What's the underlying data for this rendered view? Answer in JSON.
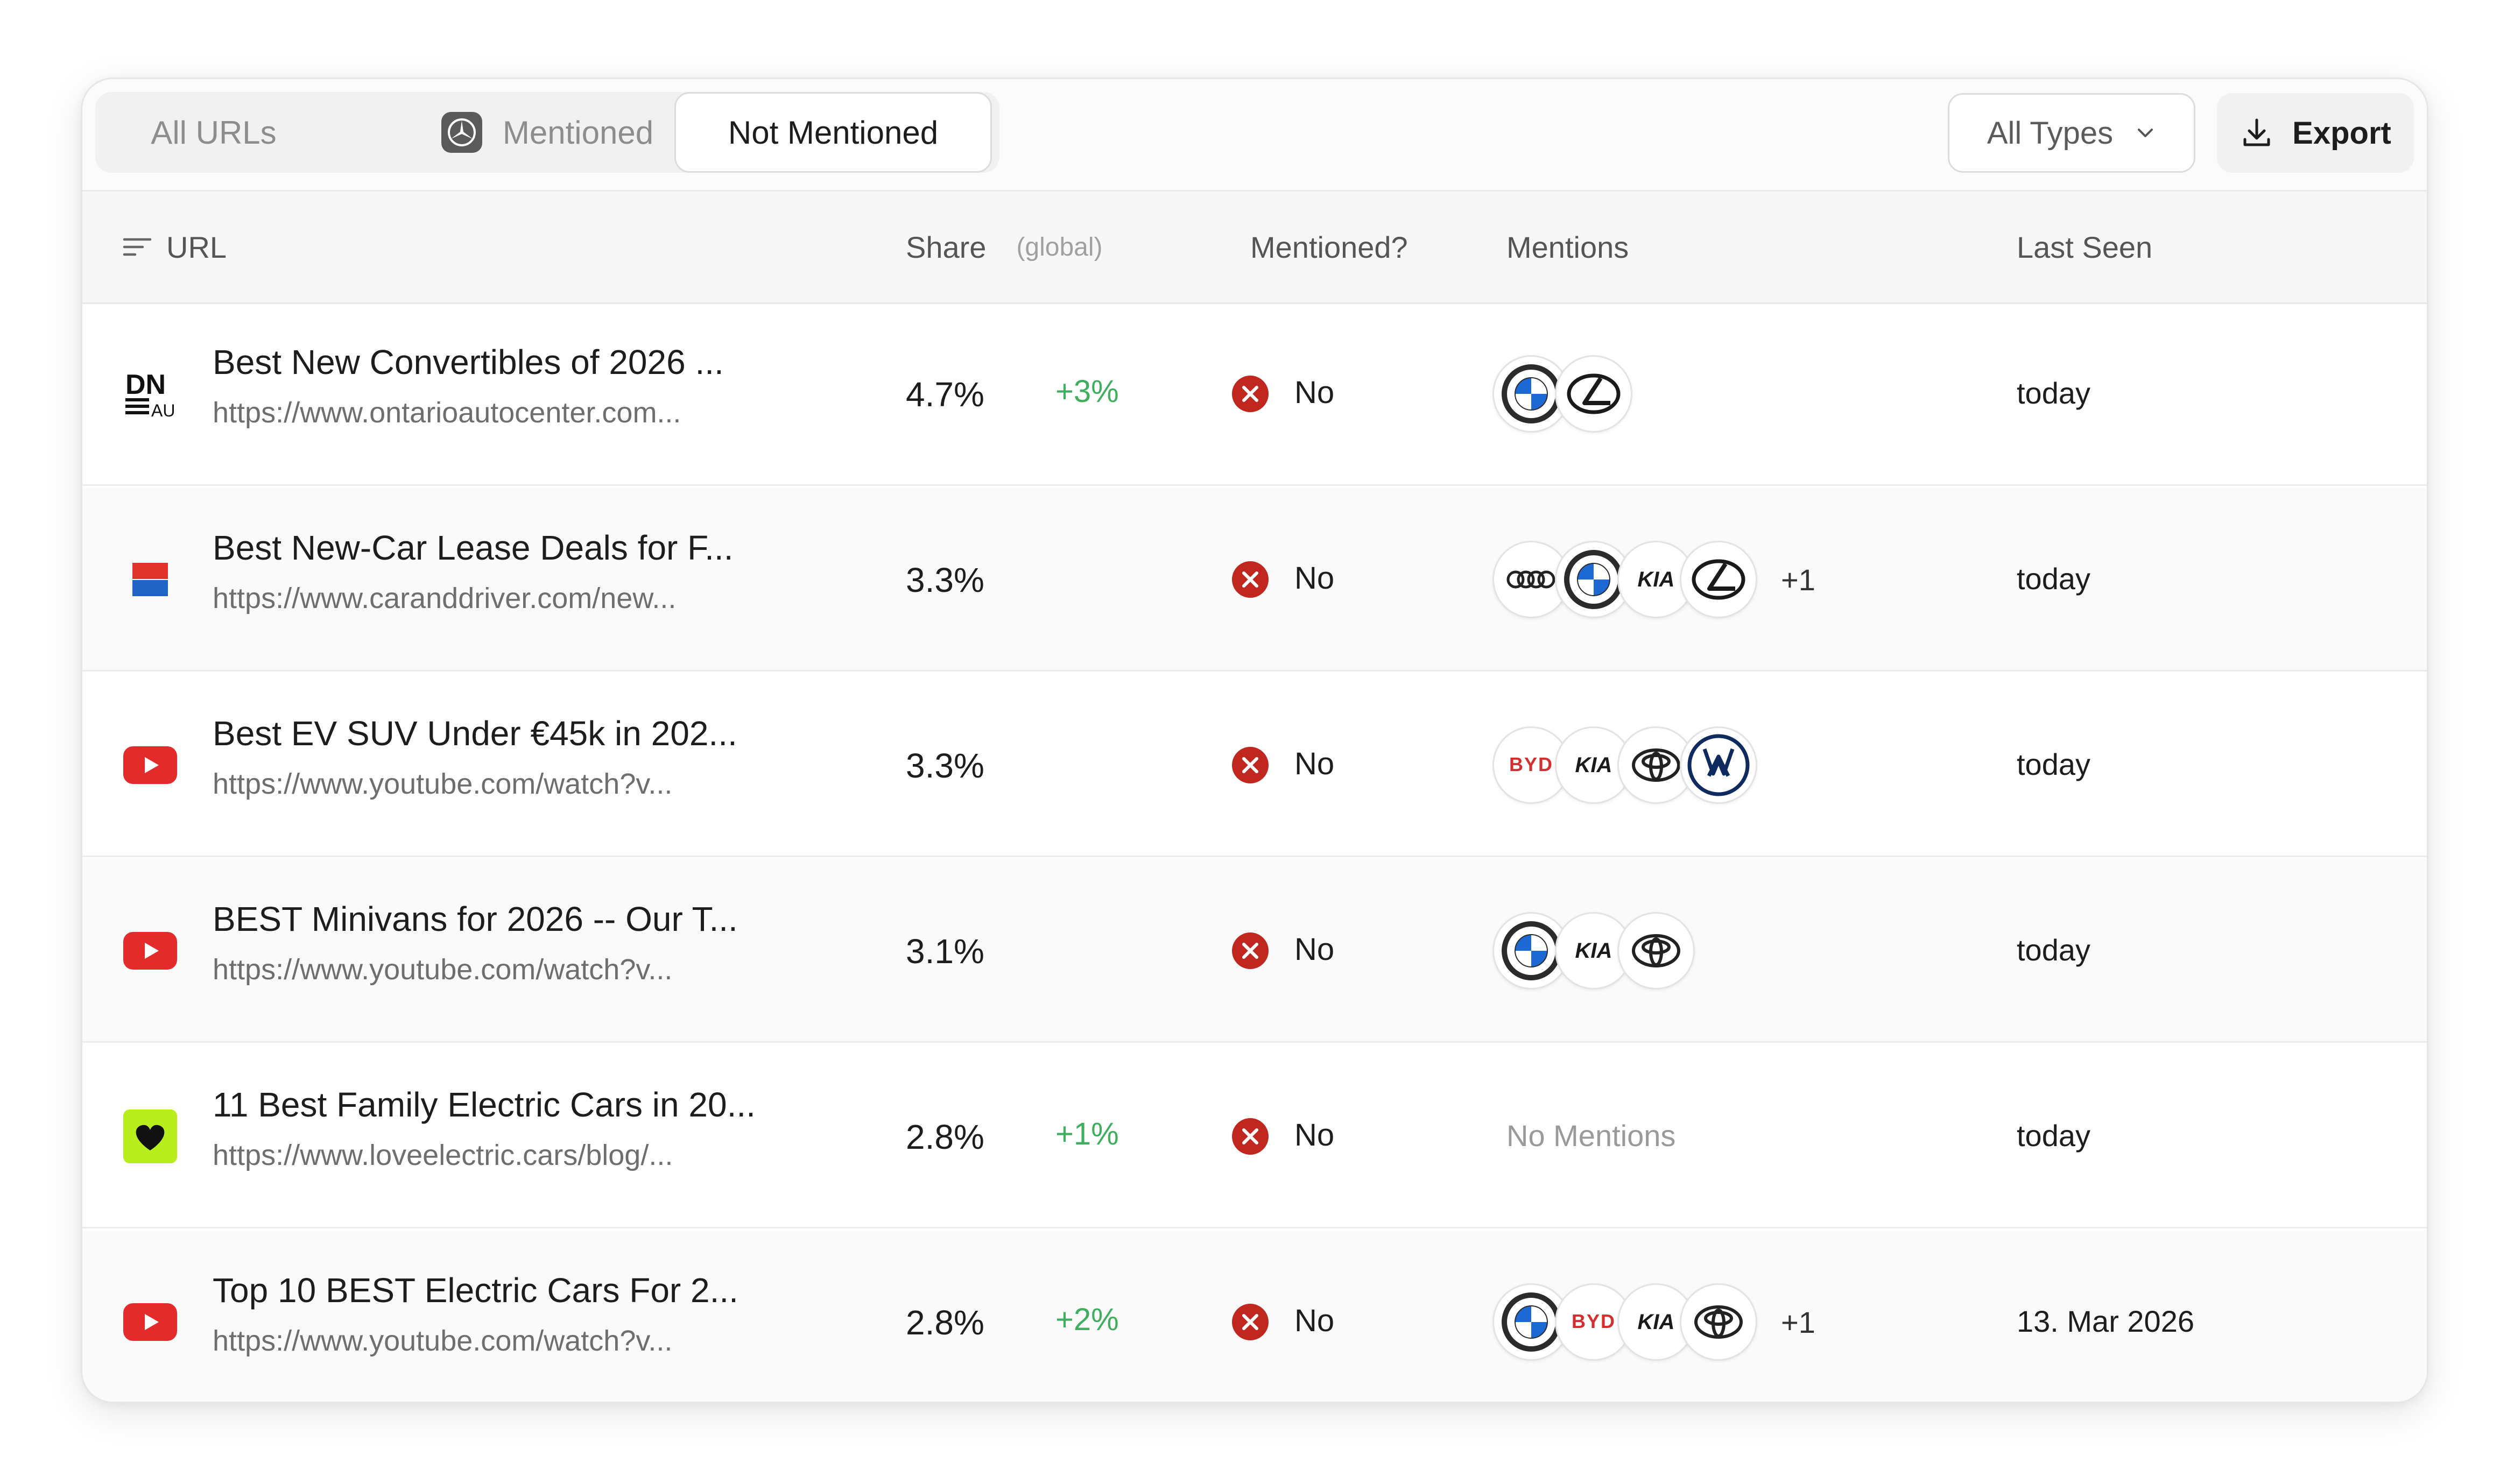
{
  "tabs": [
    {
      "label": "All URLs"
    },
    {
      "label": "Mentioned"
    },
    {
      "label": "Not Mentioned"
    }
  ],
  "filter": {
    "selected": "All Types"
  },
  "export": {
    "label": "Export"
  },
  "columns": {
    "url": "URL",
    "share": "Share",
    "share_sub": "(global)",
    "mentioned": "Mentioned?",
    "mentions": "Mentions",
    "last_seen": "Last Seen"
  },
  "rows": [
    {
      "title": "Best New Convertibles of 2026 ...",
      "url": "https://www.ontarioautocenter.com...",
      "share": "4.7%",
      "delta": "+3%",
      "mentioned": "No",
      "mentions": [
        "bmw",
        "lexus"
      ],
      "more": "",
      "last_seen": "today",
      "favicon": "dnau-icon"
    },
    {
      "title": "Best New-Car Lease Deals for F...",
      "url": "https://www.caranddriver.com/new...",
      "share": "3.3%",
      "delta": "",
      "mentioned": "No",
      "mentions": [
        "audi",
        "bmw",
        "kia",
        "lexus"
      ],
      "more": "+1",
      "last_seen": "today",
      "favicon": "caranddriver-icon"
    },
    {
      "title": "Best EV SUV Under €45k in 202...",
      "url": "https://www.youtube.com/watch?v...",
      "share": "3.3%",
      "delta": "",
      "mentioned": "No",
      "mentions": [
        "byd",
        "kia",
        "toyota",
        "volkswagen"
      ],
      "more": "",
      "last_seen": "today",
      "favicon": "youtube-icon"
    },
    {
      "title": "BEST Minivans for 2026 -- Our T...",
      "url": "https://www.youtube.com/watch?v...",
      "share": "3.1%",
      "delta": "",
      "mentioned": "No",
      "mentions": [
        "bmw",
        "kia",
        "toyota"
      ],
      "more": "",
      "last_seen": "today",
      "favicon": "youtube-icon"
    },
    {
      "title": "11 Best Family Electric Cars in 20...",
      "url": "https://www.loveelectric.cars/blog/...",
      "share": "2.8%",
      "delta": "+1%",
      "mentioned": "No",
      "mentions": [],
      "no_mentions": "No Mentions",
      "more": "",
      "last_seen": "today",
      "favicon": "loveelectric-icon"
    },
    {
      "title": "Top 10 BEST Electric Cars For 2...",
      "url": "https://www.youtube.com/watch?v...",
      "share": "2.8%",
      "delta": "+2%",
      "mentioned": "No",
      "mentions": [
        "bmw",
        "byd",
        "kia",
        "toyota"
      ],
      "more": "+1",
      "last_seen": "13. Mar 2026",
      "favicon": "youtube-icon"
    }
  ],
  "colors": {
    "positive": "#3fae5f",
    "negative": "#c0281f",
    "youtube": "#e32b2b",
    "loveelectric": "#b8ee1c"
  },
  "logo_text": {
    "byd": "BYD",
    "kia": "KIA"
  }
}
